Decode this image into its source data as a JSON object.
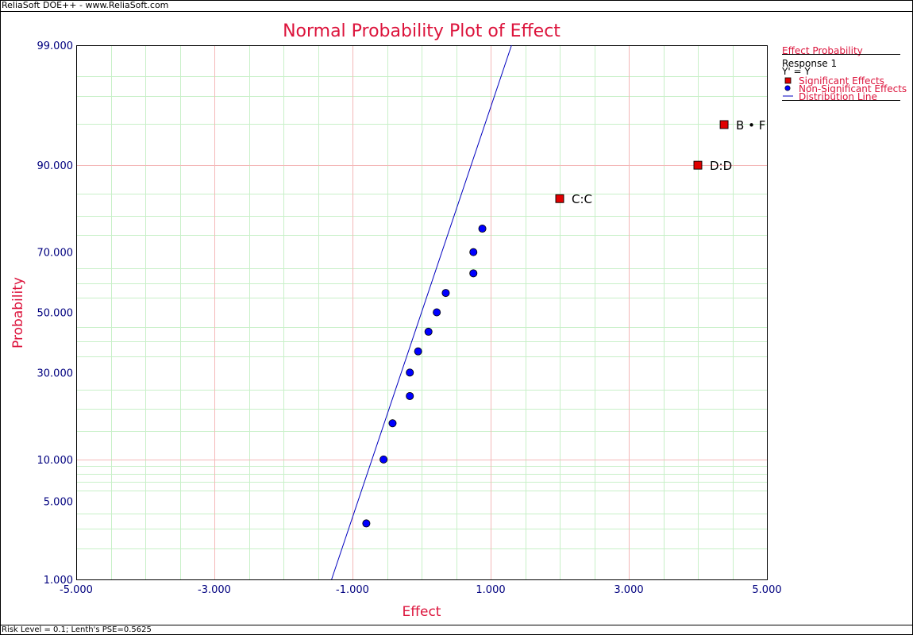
{
  "app": {
    "header": "ReliaSoft DOE++ - www.ReliaSoft.com",
    "footer": "Risk Level = 0.1; Lenth's PSE=0.5625"
  },
  "legend": {
    "title": "Effect Probability",
    "response": "Response 1",
    "transform": "Y' = Y",
    "significant": "Significant Effects",
    "non_significant": "Non-Significant Effects",
    "distribution": "Distribution Line"
  },
  "colors": {
    "title": "#dc143c",
    "tick": "#00007f",
    "major_grid": "#f4b8b8",
    "minor_grid": "#c8f0c8",
    "significant": "#e00000",
    "non_significant": "#0000ff",
    "line": "#0000c0"
  },
  "chart_data": {
    "type": "scatter",
    "title": "Normal Probability Plot of Effect",
    "xlabel": "Effect",
    "ylabel": "Probability",
    "xlim": [
      -5,
      5
    ],
    "ylim": [
      1,
      99
    ],
    "y_scale": "normal-probability",
    "x_ticks": [
      "-5.000",
      "-3.000",
      "-1.000",
      "1.000",
      "3.000",
      "5.000"
    ],
    "y_ticks": [
      {
        "value": 1,
        "label": "1.000"
      },
      {
        "value": 5,
        "label": "5.000"
      },
      {
        "value": 10,
        "label": "10.000"
      },
      {
        "value": 30,
        "label": "30.000"
      },
      {
        "value": 50,
        "label": "50.000"
      },
      {
        "value": 70,
        "label": "70.000"
      },
      {
        "value": 90,
        "label": "90.000"
      },
      {
        "value": 99,
        "label": "99.000"
      }
    ],
    "significant_effects": [
      {
        "label": "C:C",
        "x": 2.0,
        "y": 83.9
      },
      {
        "label": "D:D",
        "x": 4.0,
        "y": 90.0
      },
      {
        "label": "B • F",
        "x": 4.38,
        "y": 94.9
      }
    ],
    "non_significant_effects": [
      {
        "x": -0.8,
        "y": 3.3
      },
      {
        "x": -0.55,
        "y": 10.0
      },
      {
        "x": -0.42,
        "y": 16.7
      },
      {
        "x": -0.17,
        "y": 23.3
      },
      {
        "x": -0.17,
        "y": 30.0
      },
      {
        "x": -0.05,
        "y": 36.7
      },
      {
        "x": 0.1,
        "y": 43.3
      },
      {
        "x": 0.22,
        "y": 50.0
      },
      {
        "x": 0.35,
        "y": 56.7
      },
      {
        "x": 0.75,
        "y": 63.3
      },
      {
        "x": 0.75,
        "y": 70.0
      },
      {
        "x": 0.88,
        "y": 76.7
      }
    ],
    "distribution_line": {
      "mean": 0.0,
      "sd": 0.56
    }
  }
}
